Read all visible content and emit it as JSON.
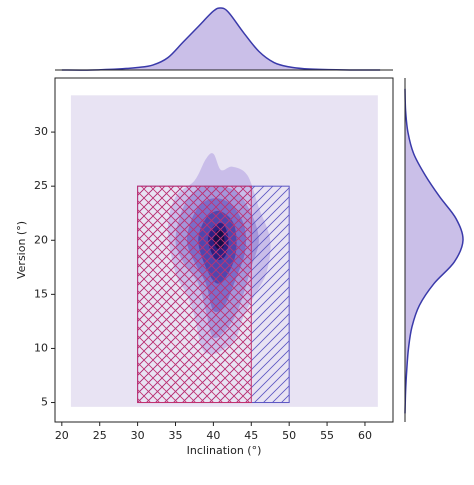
{
  "chart_data": {
    "type": "jointkde",
    "x_label": "Inclination (°)",
    "y_label": "Version (°)",
    "xlim": [
      19.1,
      63.7
    ],
    "ylim": [
      3.2,
      35
    ],
    "xticks": [
      20,
      25,
      30,
      35,
      40,
      45,
      50,
      55,
      60
    ],
    "yticks": [
      5,
      10,
      15,
      20,
      25,
      30
    ],
    "background_region": {
      "x": [
        21.2,
        61.7
      ],
      "y": [
        4.6,
        33.4
      ],
      "color": "#e8e3f3"
    },
    "contours": [
      {
        "color": "#c3b6e6",
        "x": [
          34,
          35,
          37.5,
          39,
          40,
          41,
          42.5,
          44.5,
          46,
          47.5,
          47,
          45.5,
          44,
          43,
          41.5,
          40,
          38.5,
          37.5,
          36.5,
          35
        ],
        "y": [
          21,
          24,
          25.5,
          27.5,
          28,
          26.5,
          26.8,
          26,
          23,
          20,
          17,
          15,
          13,
          11,
          10,
          9.5,
          10,
          13,
          15,
          17
        ]
      },
      {
        "color": "#9f8fd6",
        "x": [
          35,
          36,
          38,
          40.5,
          43,
          45,
          46,
          45,
          43.5,
          42,
          40,
          39,
          38,
          36
        ],
        "y": [
          20,
          23,
          24.8,
          25,
          24.5,
          22.5,
          20,
          17.5,
          14,
          12,
          11,
          13.5,
          16,
          18
        ]
      },
      {
        "color": "#7466c4",
        "x": [
          36.5,
          37.5,
          39.5,
          42,
          44,
          44.2,
          43,
          41.5,
          40,
          39,
          37.5
        ],
        "y": [
          20,
          22.5,
          23.8,
          23.5,
          21.5,
          19,
          16.5,
          14,
          13.5,
          16,
          18
        ]
      },
      {
        "color": "#4a3fa8",
        "x": [
          38,
          39,
          40.8,
          42.7,
          43,
          42,
          40.5,
          39
        ],
        "y": [
          20,
          22,
          22.7,
          21.5,
          19,
          17,
          16,
          17.5
        ]
      },
      {
        "color": "#261a7a",
        "x": [
          39.3,
          40,
          41.3,
          42,
          41.5,
          40.2
        ],
        "y": [
          20,
          21.3,
          21.5,
          20,
          18.5,
          18.3
        ]
      },
      {
        "color": "#120a40",
        "x": [
          40,
          40.5,
          41.3,
          41.4,
          40.6
        ],
        "y": [
          20,
          20.9,
          20.7,
          19.5,
          19.2
        ]
      }
    ],
    "regions": [
      {
        "x": [
          30,
          50
        ],
        "y": [
          5,
          25
        ],
        "color": "#5b55c2",
        "hatch": "diagonal"
      },
      {
        "x": [
          30,
          45
        ],
        "y": [
          5,
          25
        ],
        "color": "#c2306e",
        "hatch": "cross"
      }
    ],
    "marginal_x": {
      "color": "#3a3aaa",
      "fill": "#c4b8e6",
      "x": [
        20,
        24,
        28,
        30,
        32,
        34,
        36,
        38,
        40,
        41,
        42,
        44,
        46,
        48,
        50,
        52,
        54,
        58,
        62
      ],
      "density": [
        0,
        0,
        0.02,
        0.04,
        0.08,
        0.2,
        0.45,
        0.7,
        0.95,
        1.0,
        0.93,
        0.6,
        0.3,
        0.12,
        0.05,
        0.02,
        0.01,
        0,
        0
      ]
    },
    "marginal_y": {
      "color": "#3a3aaa",
      "fill": "#c4b8e6",
      "y": [
        4,
        6,
        8,
        10,
        12,
        14,
        16,
        18,
        20,
        22,
        24,
        26,
        28,
        30,
        32,
        34
      ],
      "density": [
        0,
        0.01,
        0.03,
        0.06,
        0.12,
        0.25,
        0.5,
        0.85,
        1.0,
        0.88,
        0.6,
        0.35,
        0.15,
        0.05,
        0.01,
        0
      ]
    }
  }
}
